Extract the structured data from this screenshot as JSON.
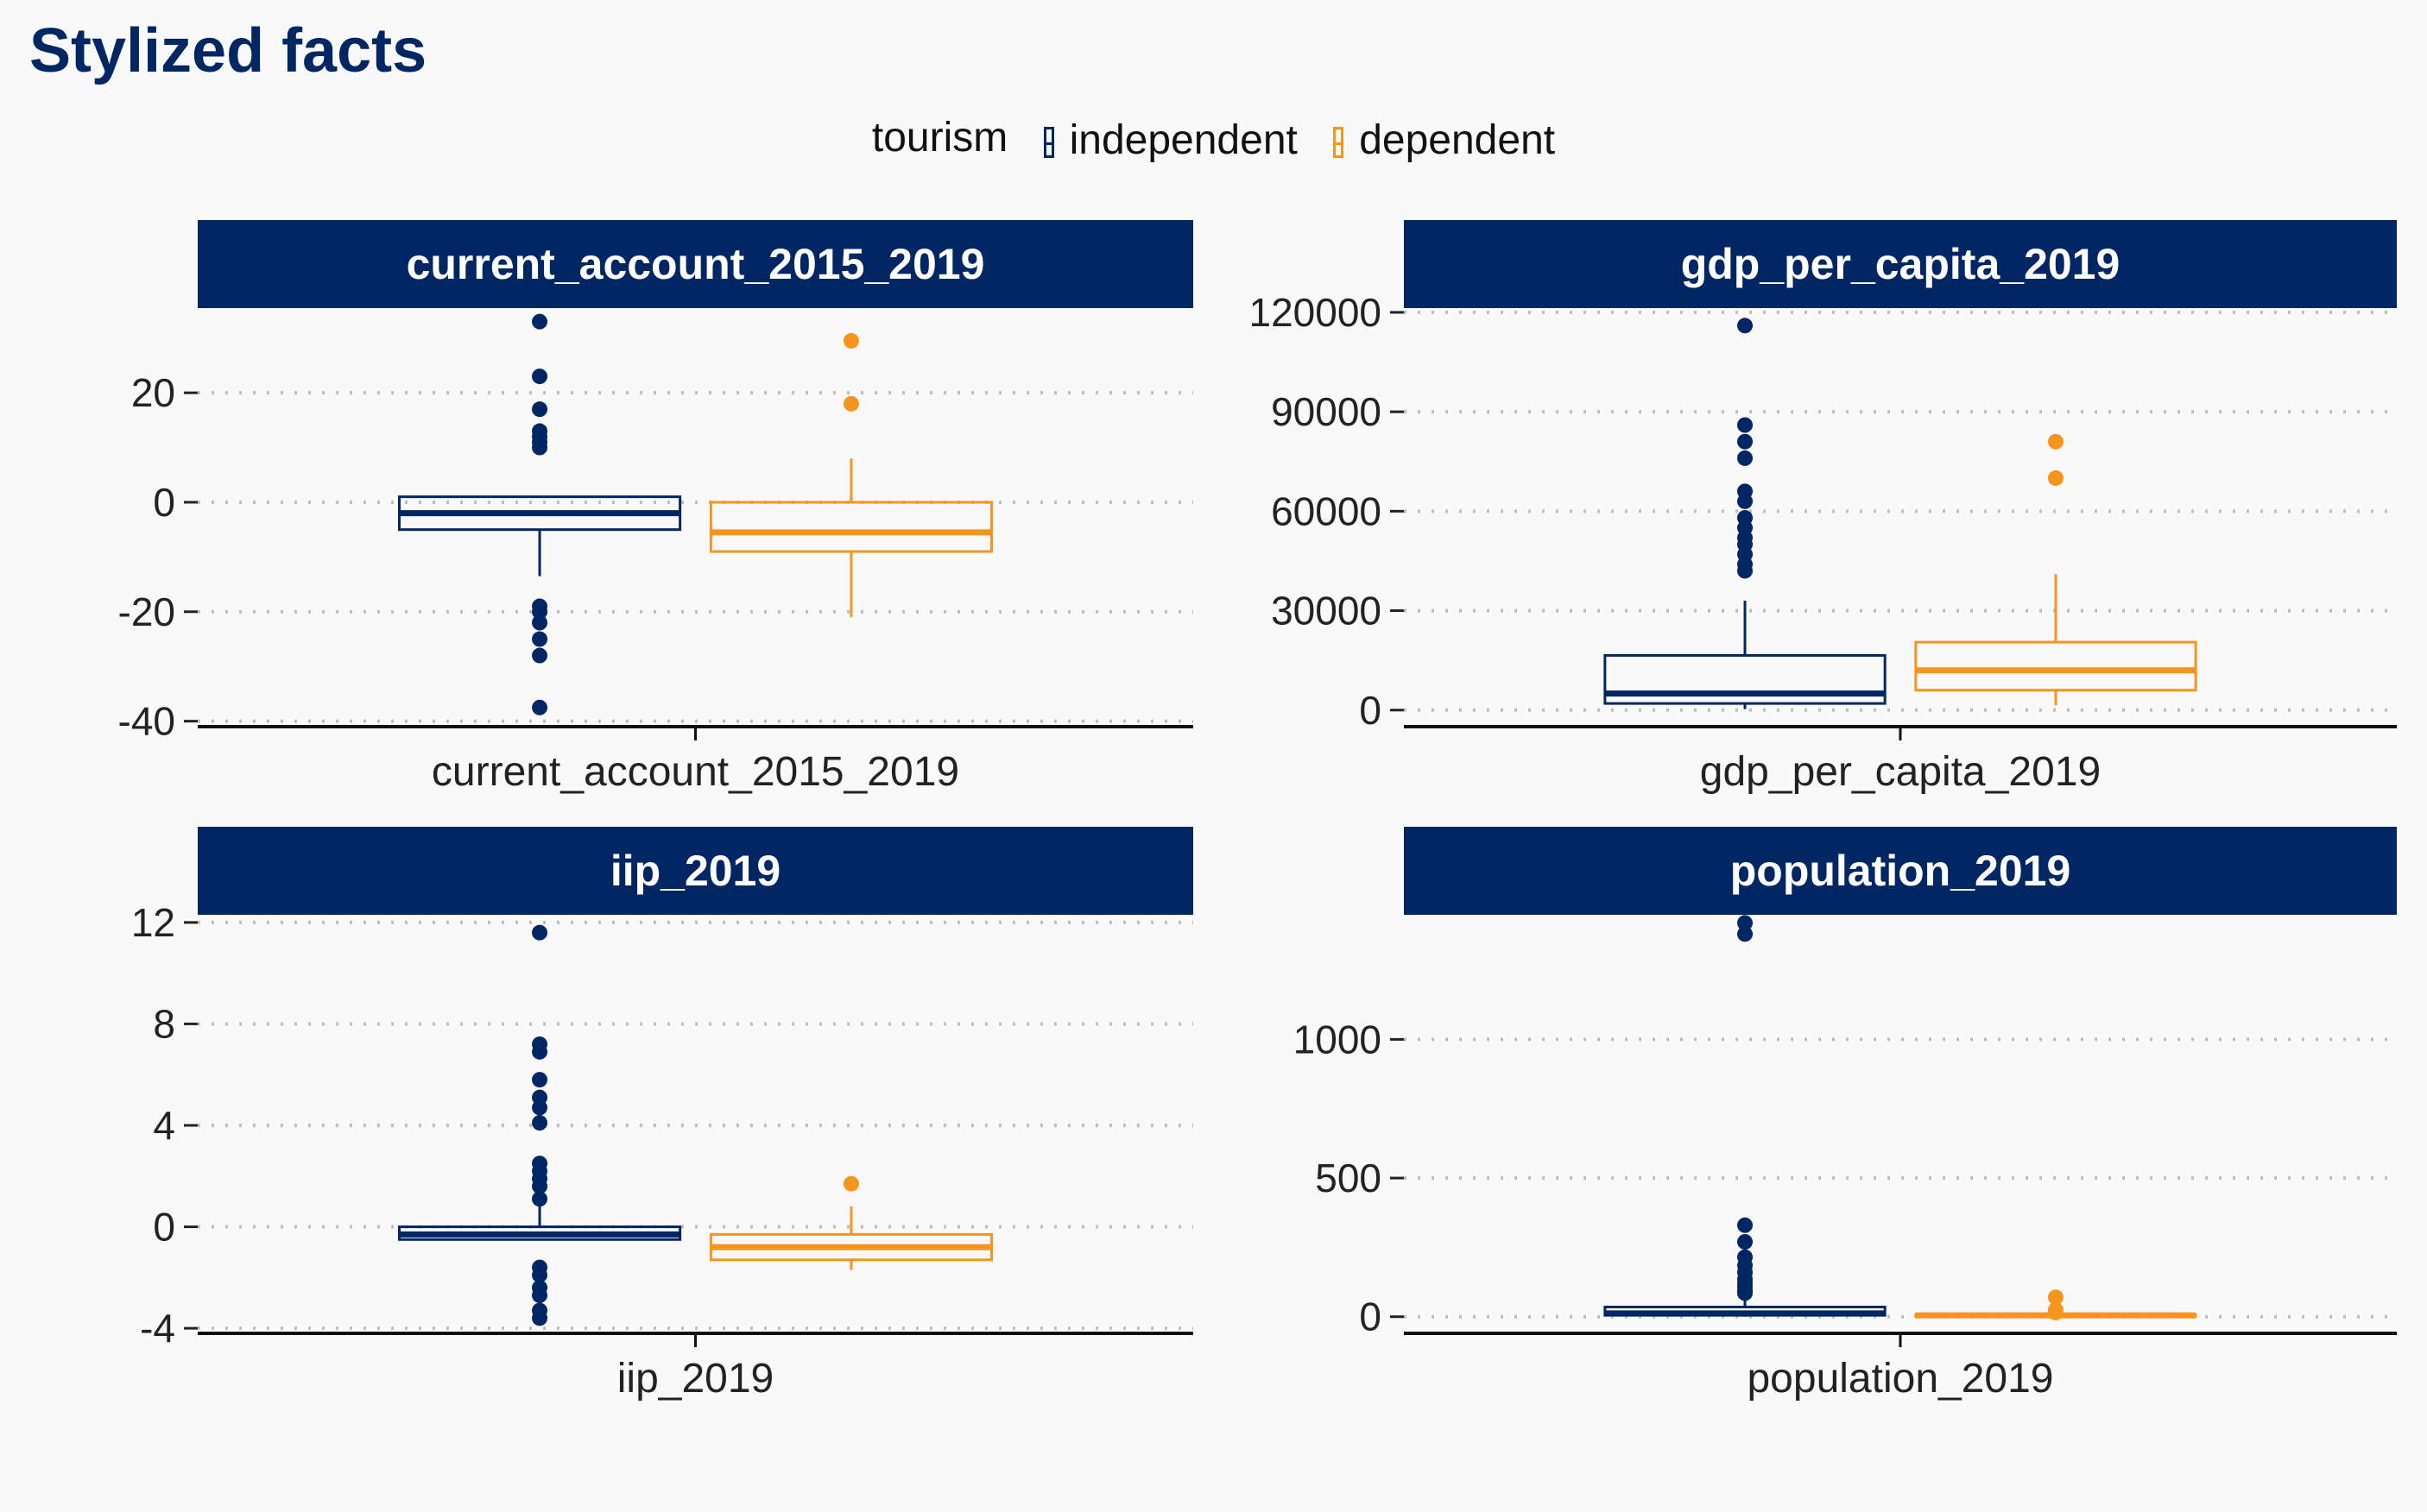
{
  "title": "Stylized facts",
  "legend": {
    "title": "tourism",
    "entries": [
      {
        "label": "independent",
        "color": "#002663"
      },
      {
        "label": "dependent",
        "color": "#f7941d"
      }
    ],
    "position": "top"
  },
  "colors": {
    "strip_bg": "#002663",
    "background": "#f9f9f9",
    "grid": "#bdbdbd"
  },
  "chart_data": [
    {
      "type": "boxplot",
      "title": "current_account_2015_2019",
      "xlabel": "current_account_2015_2019",
      "ylim": [
        -41,
        35
      ],
      "yticks": [
        -40,
        -20,
        0,
        20
      ],
      "grid": "horizontal dotted",
      "series": [
        {
          "name": "independent",
          "whisker_low": -13.5,
          "q1": -5,
          "median": -2,
          "q3": 1,
          "whisker_high": 1,
          "outliers": [
            33,
            23,
            17,
            13,
            12,
            11,
            10,
            -19,
            -20,
            -22,
            -25,
            -28,
            -37.5
          ]
        },
        {
          "name": "dependent",
          "whisker_low": -21,
          "q1": -9,
          "median": -5.5,
          "q3": 0,
          "whisker_high": 8,
          "outliers": [
            29.5,
            18
          ]
        }
      ]
    },
    {
      "type": "boxplot",
      "title": "gdp_per_capita_2019",
      "xlabel": "gdp_per_capita_2019",
      "ylim": [
        -5000,
        120500
      ],
      "yticks": [
        0,
        30000,
        60000,
        90000,
        120000
      ],
      "grid": "horizontal dotted",
      "series": [
        {
          "name": "independent",
          "whisker_low": 300,
          "q1": 2000,
          "median": 5000,
          "q3": 16500,
          "whisker_high": 33000,
          "outliers": [
            116000,
            86000,
            81000,
            76000,
            66000,
            63000,
            58000,
            55000,
            52000,
            50000,
            47000,
            44000,
            42000
          ]
        },
        {
          "name": "dependent",
          "whisker_low": 1500,
          "q1": 6000,
          "median": 12000,
          "q3": 20500,
          "whisker_high": 41000,
          "outliers": [
            81000,
            70000
          ]
        }
      ]
    },
    {
      "type": "boxplot",
      "title": "iip_2019",
      "xlabel": "iip_2019",
      "ylim": [
        -4.2,
        12.2
      ],
      "yticks": [
        -4,
        0,
        4,
        8,
        12
      ],
      "grid": "horizontal dotted",
      "series": [
        {
          "name": "independent",
          "whisker_low": -0.5,
          "q1": -0.5,
          "median": -0.3,
          "q3": 0,
          "whisker_high": 0.9,
          "outliers": [
            11.6,
            7.2,
            6.9,
            5.8,
            5.1,
            4.7,
            4.1,
            2.5,
            2.2,
            1.9,
            1.6,
            1.1,
            -1.6,
            -1.9,
            -2.4,
            -2.7,
            -3.3,
            -3.6
          ]
        },
        {
          "name": "dependent",
          "whisker_low": -1.7,
          "q1": -1.3,
          "median": -0.8,
          "q3": -0.3,
          "whisker_high": 0.8,
          "outliers": [
            1.7
          ]
        }
      ]
    },
    {
      "type": "boxplot",
      "title": "population_2019",
      "xlabel": "population_2019",
      "ylim": [
        -60,
        1440
      ],
      "yticks": [
        0,
        500,
        1000
      ],
      "grid": "horizontal dotted",
      "series": [
        {
          "name": "independent",
          "whisker_low": 0,
          "q1": 5,
          "median": 12,
          "q3": 35,
          "whisker_high": 75,
          "outliers": [
            1420,
            1380,
            330,
            270,
            215,
            185,
            160,
            135,
            120,
            110,
            95,
            85
          ]
        },
        {
          "name": "dependent",
          "whisker_low": 0,
          "q1": 2,
          "median": 5,
          "q3": 8,
          "whisker_high": 14,
          "outliers": [
            70,
            25,
            15
          ]
        }
      ]
    }
  ]
}
